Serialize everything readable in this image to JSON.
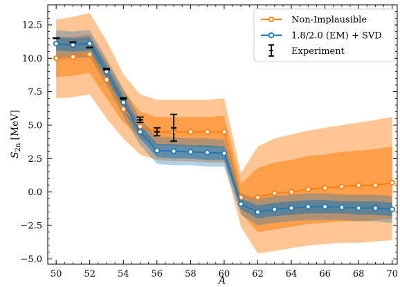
{
  "chart_data": {
    "type": "line",
    "xlabel": "A",
    "ylabel_main": "S",
    "ylabel_sub": "2n",
    "ylabel_unit": "[MeV]",
    "xlim": [
      49.5,
      70.3
    ],
    "ylim": [
      -5.4,
      14.0
    ],
    "xticks": [
      50,
      52,
      54,
      56,
      58,
      60,
      62,
      64,
      66,
      68,
      70
    ],
    "xtick_labels": [
      "50",
      "52",
      "54",
      "56",
      "58",
      "60",
      "62",
      "64",
      "66",
      "68",
      "70"
    ],
    "yticks": [
      -5.0,
      -2.5,
      0.0,
      2.5,
      5.0,
      7.5,
      10.0,
      12.5
    ],
    "ytick_labels": [
      "−5.0",
      "−2.5",
      "0.0",
      "2.5",
      "5.0",
      "7.5",
      "10.0",
      "12.5"
    ],
    "legend_position": "top-right",
    "colors": {
      "orange": "#ff7f0e",
      "blue": "#1f77b4",
      "black": "#000000"
    },
    "x": [
      50,
      51,
      52,
      53,
      54,
      55,
      56,
      57,
      58,
      59,
      60,
      61,
      62,
      63,
      64,
      65,
      66,
      67,
      68,
      69,
      70
    ],
    "series": [
      {
        "name": "Non-Implausible",
        "color": "#ff7f0e",
        "values": [
          10.0,
          10.1,
          10.3,
          8.4,
          6.2,
          4.9,
          4.5,
          4.5,
          4.5,
          4.5,
          4.5,
          -0.4,
          -0.4,
          -0.1,
          0.0,
          0.2,
          0.3,
          0.4,
          0.5,
          0.5,
          0.7
        ],
        "band_inner": {
          "lower": [
            8.6,
            8.7,
            8.9,
            7.0,
            5.2,
            4.0,
            3.5,
            3.4,
            3.4,
            3.3,
            3.3,
            -1.6,
            -3.0,
            -2.8,
            -2.6,
            -2.4,
            -2.3,
            -2.2,
            -2.2,
            -2.1,
            -2.0
          ],
          "upper": [
            11.6,
            11.6,
            11.8,
            9.8,
            7.6,
            6.0,
            5.6,
            5.6,
            5.6,
            5.6,
            5.7,
            0.6,
            1.8,
            2.2,
            2.4,
            2.7,
            2.8,
            3.0,
            3.1,
            3.2,
            3.4
          ]
        },
        "band_outer": {
          "lower": [
            7.0,
            7.1,
            7.3,
            5.5,
            4.0,
            2.8,
            2.4,
            2.3,
            2.3,
            2.2,
            2.2,
            -2.6,
            -4.6,
            -4.4,
            -4.2,
            -4.0,
            -3.9,
            -3.8,
            -3.8,
            -3.7,
            -3.6
          ],
          "upper": [
            12.9,
            13.1,
            13.4,
            11.3,
            8.8,
            7.3,
            6.9,
            6.9,
            6.9,
            6.9,
            7.0,
            1.4,
            3.4,
            4.0,
            4.3,
            4.6,
            4.8,
            5.0,
            5.2,
            5.4,
            5.6
          ]
        }
      },
      {
        "name": "1.8/2.0 (EM) + SVD",
        "color": "#1f77b4",
        "values": [
          11.1,
          11.0,
          11.1,
          9.0,
          6.7,
          4.5,
          3.1,
          3.05,
          3.0,
          2.95,
          2.9,
          -0.9,
          -1.5,
          -1.3,
          -1.2,
          -1.1,
          -1.1,
          -1.15,
          -1.2,
          -1.2,
          -1.3
        ],
        "band_inner": {
          "lower": [
            10.6,
            10.5,
            10.6,
            8.5,
            6.2,
            4.0,
            2.6,
            2.5,
            2.5,
            2.4,
            2.4,
            -1.3,
            -2.0,
            -1.8,
            -1.7,
            -1.6,
            -1.6,
            -1.6,
            -1.7,
            -1.7,
            -1.8
          ],
          "upper": [
            11.6,
            11.5,
            11.6,
            9.5,
            7.2,
            5.0,
            3.6,
            3.6,
            3.5,
            3.5,
            3.4,
            -0.5,
            -1.0,
            -0.8,
            -0.7,
            -0.6,
            -0.6,
            -0.7,
            -0.7,
            -0.7,
            -0.8
          ]
        },
        "band_outer": {
          "lower": [
            10.1,
            10.0,
            10.1,
            8.0,
            5.7,
            3.5,
            2.1,
            2.0,
            2.0,
            1.9,
            1.9,
            -1.7,
            -2.5,
            -2.3,
            -2.2,
            -2.1,
            -2.1,
            -2.1,
            -2.2,
            -2.2,
            -2.3
          ],
          "upper": [
            12.1,
            12.0,
            12.1,
            10.0,
            7.7,
            5.5,
            4.1,
            4.1,
            4.0,
            4.0,
            3.9,
            -0.1,
            -0.5,
            -0.3,
            -0.2,
            -0.1,
            -0.1,
            -0.2,
            -0.2,
            -0.2,
            -0.3
          ]
        }
      }
    ],
    "experiment": {
      "name": "Experiment",
      "color": "#000000",
      "x": [
        50,
        51,
        52,
        53,
        54,
        55,
        56,
        57
      ],
      "y": [
        11.5,
        11.2,
        10.8,
        9.2,
        7.0,
        5.4,
        4.5,
        4.8
      ],
      "err": [
        0.02,
        0.02,
        0.02,
        0.05,
        0.05,
        0.2,
        0.3,
        1.0
      ]
    }
  }
}
